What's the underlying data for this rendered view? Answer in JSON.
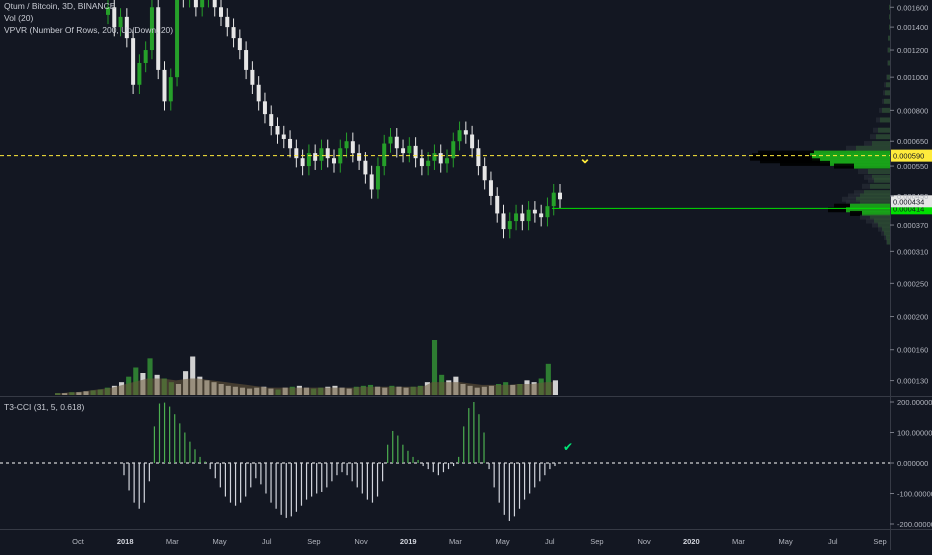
{
  "legend": {
    "symbol_line": "Qtum / Bitcoin, 3D, BINANCE",
    "vol_line": "Vol (20)",
    "vpvr_line": "VPVR (Number Of Rows, 200, Up/Down, 20)",
    "cci_line": "T3-CCI (31, 5, 0.618)"
  },
  "chart_data": [
    {
      "type": "candlestick",
      "title": "Qtum / Bitcoin, 3D, BINANCE",
      "price_axis_ticks": [
        "0.001600",
        "0.001400",
        "0.001200",
        "0.001000",
        "0.000800",
        "0.000650",
        "0.000550",
        "0.000450",
        "0.000370",
        "0.000310",
        "0.000250",
        "0.000200",
        "0.000160",
        "0.000130"
      ],
      "price_axis_values": [
        0.0016,
        0.0014,
        0.0012,
        0.001,
        0.0008,
        0.00065,
        0.00055,
        0.00045,
        0.00037,
        0.00031,
        0.00025,
        0.0002,
        0.00016,
        0.00013
      ],
      "scale": "log",
      "horizontal_line": {
        "value": 0.00059,
        "label": "0.000590",
        "color": "#ffeb3b",
        "style": "dashed"
      },
      "last_price": {
        "value": 0.000434,
        "label": "0.000434"
      },
      "support_line": {
        "value": 0.000414,
        "label": "0.000414",
        "color": "#00e000"
      },
      "x_axis_labels": [
        "Oct",
        "2018",
        "Mar",
        "May",
        "Jul",
        "Sep",
        "Nov",
        "2019",
        "Mar",
        "May",
        "Jul",
        "Sep",
        "Nov",
        "2020",
        "Mar",
        "May",
        "Jul",
        "Sep"
      ],
      "annotations": [
        {
          "text": "⌄",
          "description": "yellow chevron marker",
          "color": "#ffeb3b"
        }
      ],
      "candles_close": [
        0.0016,
        0.0014,
        0.0015,
        0.0013,
        0.00095,
        0.0011,
        0.0012,
        0.0016,
        0.00105,
        0.00085,
        0.001,
        0.0018,
        0.0017,
        0.0019,
        0.0016,
        0.0017,
        0.0018,
        0.0016,
        0.0015,
        0.0014,
        0.0013,
        0.0012,
        0.00105,
        0.00095,
        0.00085,
        0.00078,
        0.00072,
        0.00068,
        0.00066,
        0.00062,
        0.00058,
        0.00055,
        0.0006,
        0.00057,
        0.00062,
        0.00058,
        0.00056,
        0.00062,
        0.00065,
        0.0006,
        0.00057,
        0.00052,
        0.00047,
        0.00055,
        0.00064,
        0.00067,
        0.00062,
        0.0006,
        0.00063,
        0.00058,
        0.00055,
        0.00057,
        0.0006,
        0.00056,
        0.00058,
        0.00065,
        0.0007,
        0.00068,
        0.00062,
        0.00055,
        0.0005,
        0.00045,
        0.0004,
        0.00036,
        0.00038,
        0.0004,
        0.00038,
        0.00041,
        0.0004,
        0.00039,
        0.00042,
        0.00046,
        0.00044
      ],
      "candles_up": [
        true,
        false,
        true,
        false,
        false,
        true,
        true,
        true,
        false,
        false,
        true,
        true,
        false,
        true,
        false,
        true,
        true,
        false,
        false,
        false,
        false,
        false,
        false,
        false,
        false,
        false,
        false,
        false,
        false,
        false,
        false,
        false,
        true,
        false,
        true,
        false,
        false,
        true,
        true,
        false,
        false,
        false,
        false,
        true,
        true,
        true,
        false,
        false,
        true,
        false,
        false,
        true,
        true,
        false,
        true,
        true,
        true,
        false,
        false,
        false,
        false,
        false,
        false,
        false,
        true,
        true,
        false,
        true,
        false,
        false,
        true,
        true,
        false
      ]
    },
    {
      "type": "bar",
      "title": "Vol (20)",
      "values": [
        2,
        2,
        3,
        3,
        4,
        5,
        6,
        8,
        10,
        14,
        20,
        30,
        24,
        40,
        22,
        18,
        14,
        12,
        26,
        42,
        20,
        16,
        14,
        12,
        10,
        9,
        8,
        7,
        8,
        9,
        7,
        6,
        8,
        9,
        10,
        8,
        7,
        8,
        9,
        10,
        8,
        7,
        9,
        10,
        11,
        9,
        8,
        10,
        9,
        8,
        9,
        10,
        14,
        60,
        22,
        16,
        20,
        12,
        10,
        8,
        9,
        10,
        12,
        14,
        11,
        12,
        16,
        14,
        18,
        34,
        16
      ],
      "ma_values": [
        2,
        2,
        3,
        3,
        4,
        5,
        6,
        7,
        8,
        10,
        12,
        14,
        16,
        18,
        18,
        18,
        17,
        16,
        17,
        18,
        18,
        17,
        16,
        15,
        14,
        13,
        12,
        11,
        10,
        9,
        8,
        8,
        8,
        8,
        8,
        8,
        8,
        8,
        8,
        8,
        8,
        8,
        8,
        9,
        9,
        9,
        9,
        9,
        9,
        9,
        9,
        9,
        10,
        14,
        14,
        14,
        14,
        14,
        13,
        12,
        11,
        11,
        11,
        11,
        11,
        12,
        12,
        12,
        13,
        14,
        14
      ]
    },
    {
      "type": "histogram",
      "title": "T3-CCI (31, 5, 0.618)",
      "y_axis_ticks": [
        "200.000000",
        "100.000000",
        "0.000000",
        "-100.000000",
        "-200.000000"
      ],
      "y_axis_values": [
        200,
        100,
        0,
        -100,
        -200
      ],
      "zero_line_style": "dashed",
      "annotations": [
        {
          "text": "✔",
          "description": "green check marker",
          "color": "#00e676"
        }
      ],
      "values": [
        -40,
        -90,
        -130,
        -150,
        -130,
        -60,
        120,
        195,
        198,
        185,
        160,
        130,
        100,
        70,
        45,
        20,
        5,
        -20,
        -50,
        -80,
        -110,
        -130,
        -140,
        -130,
        -110,
        -80,
        -50,
        -70,
        -100,
        -130,
        -150,
        -170,
        -180,
        -175,
        -160,
        -140,
        -120,
        -110,
        -100,
        -95,
        -80,
        -60,
        -40,
        -30,
        -40,
        -60,
        -80,
        -100,
        -120,
        -130,
        -110,
        -60,
        60,
        105,
        90,
        60,
        40,
        20,
        10,
        -10,
        -20,
        -30,
        -40,
        -30,
        -20,
        -10,
        20,
        120,
        180,
        200,
        160,
        100,
        -20,
        -80,
        -130,
        -170,
        -190,
        -175,
        -150,
        -120,
        -100,
        -80,
        -60,
        -40,
        -20,
        -10
      ]
    },
    {
      "type": "bar",
      "title": "VPVR (Number Of Rows, 200, Up/Down, 20)",
      "orientation": "horizontal",
      "price_rows": [
        0.0016,
        0.0015,
        0.0014,
        0.0013,
        0.0012,
        0.0011,
        0.001,
        0.00095,
        0.0009,
        0.00085,
        0.0008,
        0.00075,
        0.0007,
        0.00067,
        0.00064,
        0.00062,
        0.0006,
        0.00059,
        0.00058,
        0.00057,
        0.00056,
        0.00055,
        0.00053,
        0.00051,
        0.0005,
        0.00048,
        0.00046,
        0.00045,
        0.00044,
        0.00043,
        0.00042,
        0.00041,
        0.0004,
        0.00039,
        0.00038,
        0.00037,
        0.00036,
        0.00035,
        0.00034,
        0.00033
      ],
      "up_volume": [
        1,
        1,
        1,
        2,
        2,
        2,
        3,
        4,
        5,
        6,
        8,
        10,
        12,
        14,
        18,
        34,
        76,
        80,
        78,
        70,
        60,
        36,
        22,
        18,
        16,
        20,
        26,
        30,
        34,
        30,
        40,
        44,
        28,
        20,
        16,
        12,
        8,
        6,
        4,
        3
      ],
      "down_volume": [
        0,
        0,
        0,
        0,
        1,
        1,
        1,
        2,
        2,
        2,
        3,
        4,
        5,
        6,
        8,
        10,
        56,
        58,
        62,
        60,
        50,
        20,
        10,
        8,
        6,
        8,
        10,
        12,
        14,
        14,
        16,
        18,
        12,
        10,
        8,
        6,
        4,
        3,
        2,
        1
      ]
    }
  ]
}
